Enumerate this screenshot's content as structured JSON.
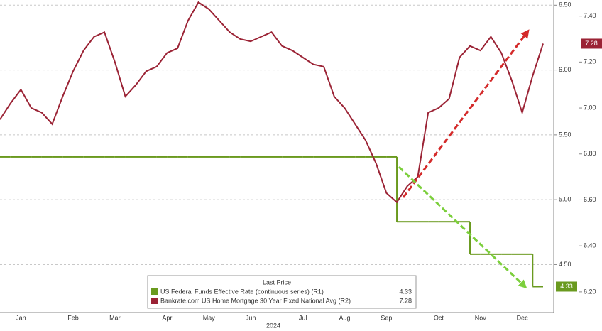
{
  "chart_data": {
    "type": "line",
    "x_label": "2024",
    "categories": [
      null,
      null,
      "Jan",
      null,
      null,
      null,
      null,
      "Feb",
      null,
      null,
      null,
      "Mar",
      null,
      null,
      null,
      null,
      "Apr",
      null,
      null,
      null,
      "May",
      null,
      null,
      null,
      "Jun",
      null,
      null,
      null,
      null,
      "Jul",
      null,
      null,
      null,
      "Aug",
      null,
      null,
      null,
      "Sep",
      null,
      null,
      null,
      null,
      "Oct",
      null,
      null,
      null,
      "Nov",
      null,
      null,
      null,
      "Dec",
      null,
      null
    ],
    "legend_title": "Last Price",
    "series": [
      {
        "name": "US Federal Funds Effective Rate (continuous series)  (R1)",
        "color": "#6a9a1f",
        "axis": "y",
        "step": true,
        "values": [
          5.33,
          5.33,
          5.33,
          5.33,
          5.33,
          5.33,
          5.33,
          5.33,
          5.33,
          5.33,
          5.33,
          5.33,
          5.33,
          5.33,
          5.33,
          5.33,
          5.33,
          5.33,
          5.33,
          5.33,
          5.33,
          5.33,
          5.33,
          5.33,
          5.33,
          5.33,
          5.33,
          5.33,
          5.33,
          5.33,
          5.33,
          5.33,
          5.33,
          5.33,
          5.33,
          5.33,
          5.33,
          5.33,
          4.83,
          4.83,
          4.83,
          4.83,
          4.83,
          4.83,
          4.83,
          4.58,
          4.58,
          4.58,
          4.58,
          4.58,
          4.58,
          4.33,
          4.33
        ]
      },
      {
        "name": "Bankrate.com US Home Mortgage 30 Year Fixed National Avg  (R2)",
        "color": "#9b2335",
        "axis": "y2",
        "values": [
          6.95,
          7.02,
          7.08,
          7.0,
          6.98,
          6.93,
          7.05,
          7.16,
          7.25,
          7.31,
          7.33,
          7.2,
          7.05,
          7.1,
          7.16,
          7.18,
          7.24,
          7.26,
          7.38,
          7.46,
          7.43,
          7.38,
          7.33,
          7.3,
          7.29,
          7.31,
          7.33,
          7.27,
          7.25,
          7.22,
          7.19,
          7.18,
          7.05,
          7.0,
          6.93,
          6.86,
          6.76,
          6.63,
          6.59,
          6.66,
          6.7,
          6.98,
          7.0,
          7.04,
          7.22,
          7.27,
          7.25,
          7.31,
          7.24,
          7.12,
          6.98,
          7.14,
          7.28
        ]
      }
    ],
    "ylim": [
      4.13,
      6.54
    ],
    "yticks": [
      {
        "value": 4.5,
        "label": "4.50"
      },
      {
        "value": 5,
        "label": "5.00"
      },
      {
        "value": 5.5,
        "label": "5.50"
      },
      {
        "value": 6,
        "label": "6.00"
      },
      {
        "value": 6.5,
        "label": "6.50"
      }
    ],
    "y2lim": [
      6.11,
      7.47
    ],
    "y2ticks": [
      {
        "value": 6.2,
        "label": "6.20"
      },
      {
        "value": 6.4,
        "label": "6.40"
      },
      {
        "value": 6.6,
        "label": "6.60"
      },
      {
        "value": 6.8,
        "label": "6.80"
      },
      {
        "value": 7,
        "label": "7.00"
      },
      {
        "value": 7.2,
        "label": "7.20"
      },
      {
        "value": 7.4,
        "label": "7.40"
      }
    ],
    "grid": true
  }
}
